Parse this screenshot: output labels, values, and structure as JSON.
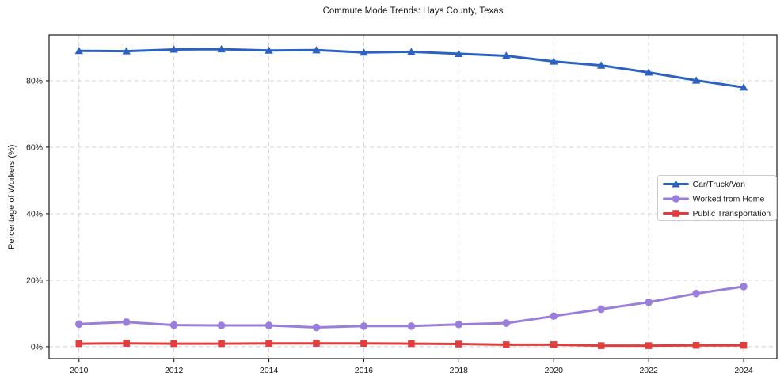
{
  "figure": {
    "title": "Commute Mode Trends: Hays County, Texas"
  },
  "chart_data": {
    "type": "line",
    "title": "Commute Mode Trends: Hays County, Texas",
    "xlabel": "",
    "ylabel": "Percentage of Workers (%)",
    "x": [
      2010,
      2011,
      2012,
      2013,
      2014,
      2015,
      2016,
      2017,
      2018,
      2019,
      2020,
      2021,
      2022,
      2023,
      2024
    ],
    "xticks": [
      2010,
      2012,
      2014,
      2016,
      2018,
      2020,
      2022,
      2024
    ],
    "xtick_labels": [
      "2010",
      "2012",
      "2014",
      "2016",
      "2018",
      "2020",
      "2022",
      "2024"
    ],
    "yticks": [
      0,
      20,
      40,
      60,
      80
    ],
    "ytick_labels": [
      "0%",
      "20%",
      "40%",
      "60%",
      "80%"
    ],
    "xlim": [
      2009.37,
      2024.7
    ],
    "ylim": [
      -3.6,
      93.8
    ],
    "grid": true,
    "grid_style": "dashed",
    "legend": {
      "position": "center-right",
      "entries": [
        "Car/Truck/Van",
        "Worked from Home",
        "Public Transportation"
      ]
    },
    "series": [
      {
        "name": "Car/Truck/Van",
        "color": "#2b62c2",
        "marker": "triangle",
        "values": [
          89.0,
          88.9,
          89.4,
          89.5,
          89.1,
          89.2,
          88.5,
          88.7,
          88.1,
          87.5,
          85.8,
          84.6,
          82.5,
          80.1,
          78.0
        ]
      },
      {
        "name": "Worked from Home",
        "color": "#9b7ddb",
        "marker": "circle",
        "values": [
          6.8,
          7.4,
          6.5,
          6.4,
          6.4,
          5.8,
          6.2,
          6.2,
          6.7,
          7.1,
          9.2,
          11.3,
          13.4,
          16.0,
          18.1
        ]
      },
      {
        "name": "Public Transportation",
        "color": "#e23d3d",
        "marker": "square",
        "values": [
          0.9,
          1.0,
          0.9,
          0.9,
          1.0,
          1.0,
          1.0,
          0.9,
          0.8,
          0.6,
          0.6,
          0.3,
          0.3,
          0.4,
          0.4
        ]
      }
    ],
    "colors": {
      "spine": "#1a1a1a",
      "grid": "#cfcfcf",
      "legend_border": "#cccccc",
      "background": "#ffffff"
    }
  }
}
